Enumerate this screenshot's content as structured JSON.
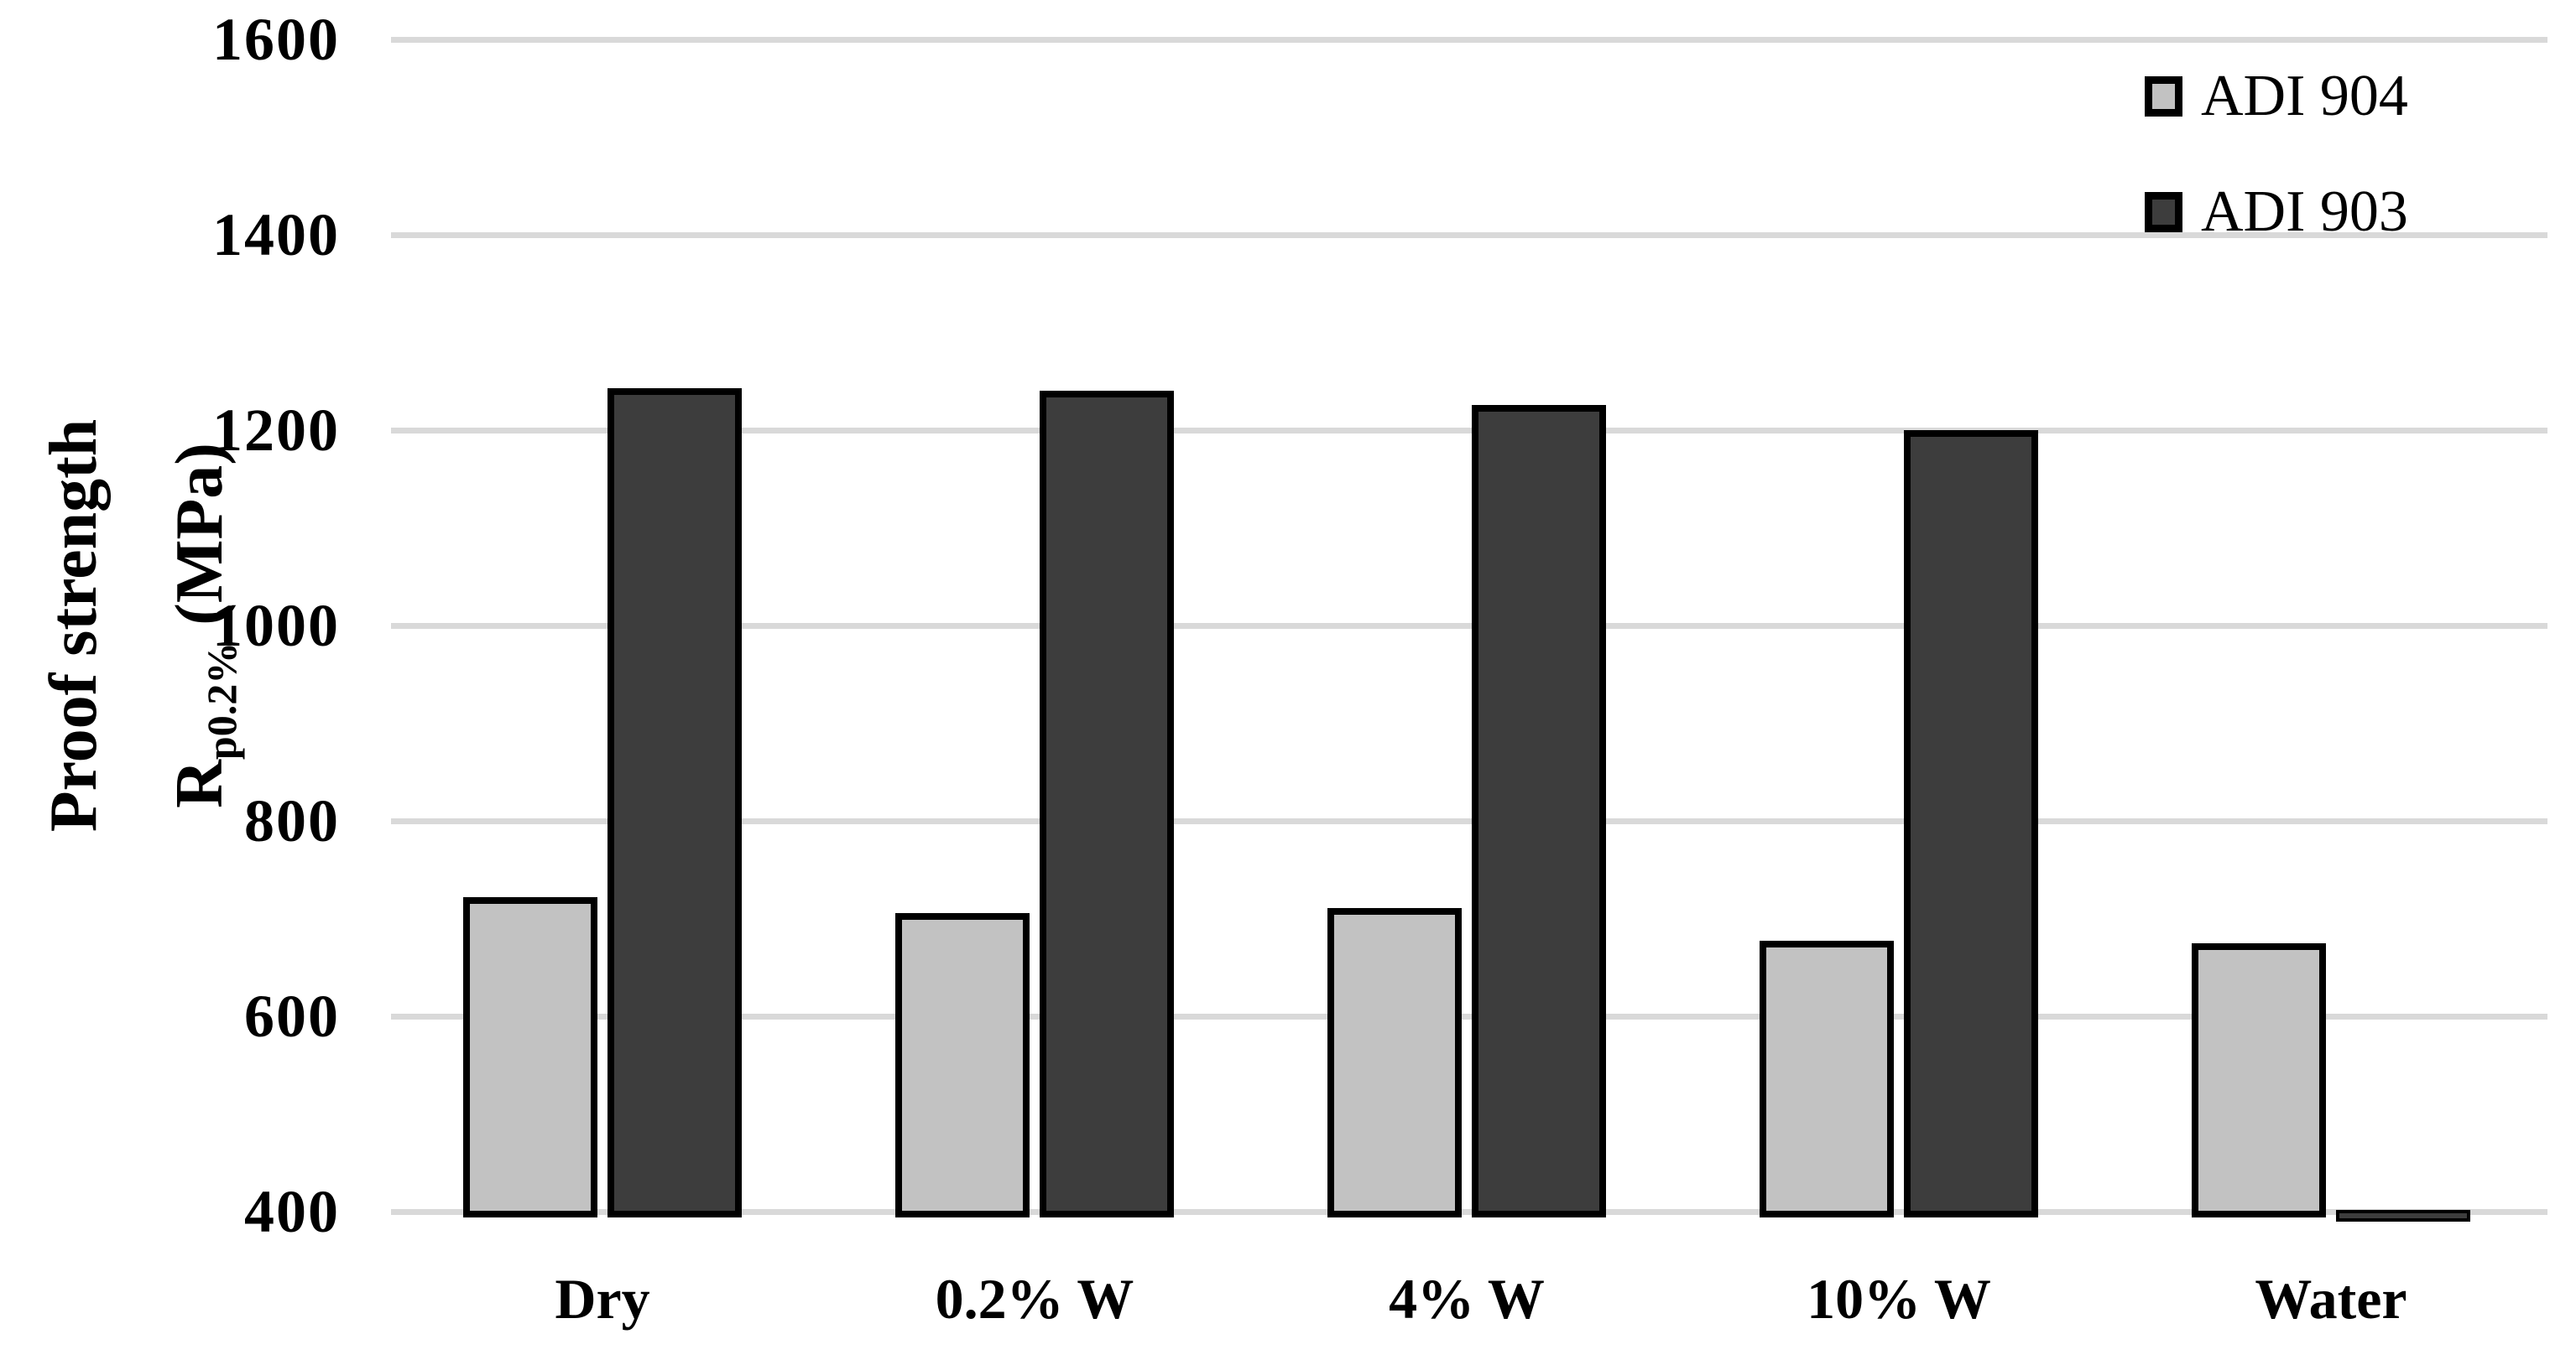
{
  "chart_data": {
    "type": "bar",
    "title": "",
    "categories": [
      "Dry",
      "0.2% W",
      "4% W",
      "10% W",
      "Water"
    ],
    "series": [
      {
        "name": "ADI 904",
        "color": "#c2c2c2",
        "values": [
          722,
          706,
          711,
          677,
          675
        ]
      },
      {
        "name": "ADI 903",
        "color": "#3d3d3d",
        "values": [
          1243,
          1240,
          1226,
          1200,
          397
        ]
      }
    ],
    "ylabel": {
      "line1": "Proof strength",
      "r": "R",
      "sub": "p0.2%",
      "unit": " (MPa)"
    },
    "yticks": [
      400,
      600,
      800,
      1000,
      1200,
      1400,
      1600
    ],
    "ylim": [
      400,
      1600
    ],
    "grid": "horizontal",
    "gridline_color": "#d9d9d9",
    "bar_outline_color": "#000000",
    "legend_position": "top-right",
    "legend": [
      "ADI 904",
      "ADI 903"
    ]
  }
}
